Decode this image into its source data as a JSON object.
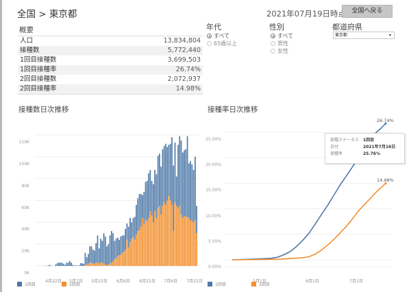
{
  "header": {
    "breadcrumb": "全国 > 東京都",
    "as_of": "2021年07月19日時点",
    "back_button": "全国へ戻る"
  },
  "summary": {
    "title": "概要",
    "rows": [
      {
        "label": "人口",
        "value": "13,834,804"
      },
      {
        "label": "接種数",
        "value": "5,772,440"
      },
      {
        "label": "1回目接種数",
        "value": "3,699,503"
      },
      {
        "label": "1回目接種率",
        "value": "26.74%"
      },
      {
        "label": "2回目接種数",
        "value": "2,072,937"
      },
      {
        "label": "2回目接種率",
        "value": "14.98%"
      }
    ]
  },
  "filters": {
    "age": {
      "title": "年代",
      "options": [
        {
          "label": "すべて",
          "selected": true
        },
        {
          "label": "65歳以上",
          "selected": false
        }
      ]
    },
    "sex": {
      "title": "性別",
      "options": [
        {
          "label": "すべて",
          "selected": true
        },
        {
          "label": "男性",
          "selected": false
        },
        {
          "label": "女性",
          "selected": false
        }
      ]
    },
    "prefecture": {
      "title": "都道府県",
      "selected": "東京都"
    }
  },
  "colors": {
    "dose1": "#4e79a7",
    "dose2": "#f28e2b",
    "grid": "#efefef"
  },
  "legend": {
    "dose1": "1回目",
    "dose2": "2回目"
  },
  "tooltip": {
    "rows": [
      {
        "key": "接種ステータス",
        "value": "1回目"
      },
      {
        "key": "日付",
        "value": "2021年7月16日"
      },
      {
        "key": "接種率",
        "value": "25.76%"
      }
    ]
  },
  "chart_data": [
    {
      "type": "bar",
      "stacked": true,
      "title": "接種数日次推移",
      "xlabel": "",
      "ylabel": "",
      "ylim": [
        0,
        130000
      ],
      "y_ticks": [
        "0K",
        "20K",
        "40K",
        "60K",
        "80K",
        "100K",
        "120K"
      ],
      "x_ticks": [
        "4月22日",
        "5月7日",
        "5月22日",
        "6月6日",
        "6月21日",
        "7月6日",
        "7月21日"
      ],
      "start_date": "2021-04-12",
      "unit": "K",
      "series": [
        {
          "name": "1回目",
          "values": [
            0,
            0,
            0,
            0,
            0,
            0.3,
            0,
            0.5,
            1,
            0.3,
            0,
            0,
            1.5,
            2.5,
            3,
            3,
            3,
            2,
            1,
            3,
            3,
            4.5,
            3,
            1,
            0.5,
            0.5,
            0.3,
            0.5,
            2.5,
            2.5,
            2,
            11,
            7,
            9,
            15,
            15,
            13,
            12,
            18,
            25,
            14,
            22,
            20,
            28,
            26,
            17,
            19,
            26,
            29,
            26,
            17,
            18,
            17,
            14,
            17,
            16,
            15,
            19,
            15,
            19,
            22,
            15,
            17,
            21,
            27,
            30,
            33,
            30,
            21,
            30,
            35,
            37,
            41,
            38,
            32,
            35,
            38,
            40,
            48,
            48,
            44,
            52,
            52,
            56,
            49,
            47,
            52,
            62,
            60,
            55,
            27,
            58,
            64,
            68,
            60,
            60,
            62,
            74,
            50,
            54,
            52,
            48,
            58,
            25
          ]
        },
        {
          "name": "2回目",
          "values": [
            0,
            0,
            0,
            0,
            0,
            0,
            0,
            0,
            0,
            0,
            0,
            0,
            0,
            0,
            0,
            0,
            0,
            0,
            0,
            0,
            0,
            0,
            0,
            0,
            0,
            0,
            0,
            0,
            0,
            0,
            0,
            1,
            1,
            2,
            3,
            3,
            2,
            2,
            3,
            3,
            2,
            3,
            3,
            2,
            1,
            1,
            1,
            2,
            3,
            4,
            6,
            7,
            9,
            10,
            10,
            12,
            13,
            15,
            24,
            17,
            22,
            25,
            27,
            24,
            29,
            32,
            33,
            36,
            44,
            38,
            42,
            41,
            44,
            50,
            46,
            40,
            50,
            44,
            53,
            55,
            47,
            55,
            58,
            56,
            60,
            64,
            60,
            56,
            32,
            58,
            55,
            53,
            55,
            47,
            44,
            46,
            45,
            45,
            44,
            42,
            41,
            40,
            42,
            30
          ]
        }
      ]
    },
    {
      "type": "line",
      "title": "接種率日次推移",
      "xlabel": "",
      "ylabel": "",
      "ylim": [
        0,
        27
      ],
      "y_ticks": [
        "0.00%",
        "5.00%",
        "10.00%",
        "15.00%",
        "20.00%",
        "25.00%"
      ],
      "x_ticks": [
        "5月1日",
        "6月1日",
        "7月1日"
      ],
      "start_date": "2021-04-12",
      "end_date": "2021-07-19",
      "series": [
        {
          "name": "1回目",
          "end_label": "26.74%",
          "points": [
            [
              0,
              0
            ],
            [
              10,
              0.1
            ],
            [
              19,
              0.2
            ],
            [
              25,
              0.3
            ],
            [
              29,
              0.5
            ],
            [
              33,
              1.0
            ],
            [
              37,
              1.6
            ],
            [
              41,
              2.6
            ],
            [
              45,
              3.8
            ],
            [
              49,
              5.2
            ],
            [
              53,
              7.0
            ],
            [
              57,
              8.9
            ],
            [
              61,
              10.7
            ],
            [
              65,
              12.7
            ],
            [
              69,
              14.7
            ],
            [
              73,
              16.5
            ],
            [
              77,
              18.3
            ],
            [
              81,
              20.2
            ],
            [
              85,
              22.0
            ],
            [
              89,
              23.9
            ],
            [
              92,
              25.0
            ],
            [
              95,
              25.76
            ],
            [
              98,
              26.74
            ]
          ]
        },
        {
          "name": "2回目",
          "end_label": "14.98%",
          "points": [
            [
              0,
              0
            ],
            [
              19,
              0.05
            ],
            [
              29,
              0.1
            ],
            [
              39,
              0.3
            ],
            [
              45,
              0.4
            ],
            [
              49,
              0.6
            ],
            [
              53,
              1.1
            ],
            [
              57,
              1.9
            ],
            [
              61,
              2.9
            ],
            [
              65,
              4.0
            ],
            [
              69,
              5.3
            ],
            [
              73,
              6.6
            ],
            [
              77,
              8.1
            ],
            [
              81,
              9.7
            ],
            [
              85,
              11.0
            ],
            [
              89,
              12.3
            ],
            [
              93,
              13.6
            ],
            [
              98,
              14.98
            ]
          ]
        }
      ]
    }
  ]
}
